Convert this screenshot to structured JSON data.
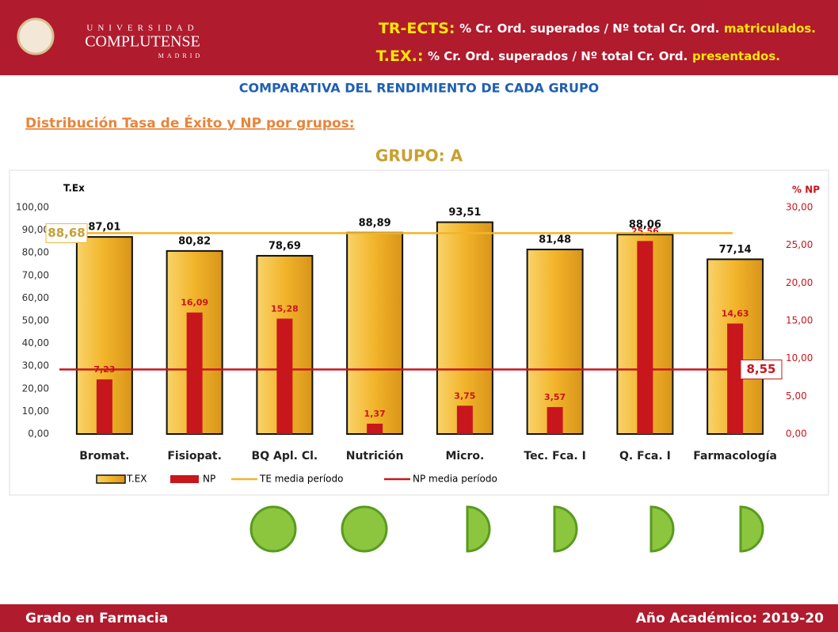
{
  "header": {
    "logo": [
      "UNIVERSIDAD",
      "COMPLUTENSE",
      "MADRID"
    ],
    "lines": [
      [
        "TR-ECTS:",
        "% Cr. Ord. superados / Nº total Cr. Ord.",
        "matriculados."
      ],
      [
        "T.EX.:",
        "% Cr. Ord. superados / Nº total Cr. Ord.",
        "presentados."
      ]
    ]
  },
  "heading": "COMPARATIVA DEL RENDIMIENTO DE CADA GRUPO",
  "subheading": "Distribución Tasa de Éxito y NP por grupos:",
  "footer": {
    "left": "Grado en Farmacia",
    "right": "Año Académico: 2019-20"
  },
  "chart_data": {
    "type": "bar",
    "title": "GRUPO: A",
    "y_label": "T.Ex",
    "y2_label": "% NP",
    "categories": [
      "Bromat.",
      "Fisiopat.",
      "BQ Apl. Cl.",
      "Nutrición",
      "Micro.",
      "Tec. Fca. I",
      "Q. Fca. I",
      "Farmacología"
    ],
    "series": [
      {
        "name": "T.EX",
        "color": "#f2b42a",
        "values": [
          87.01,
          80.82,
          78.69,
          88.89,
          93.51,
          81.48,
          88.06,
          77.14
        ],
        "value_labels": [
          "87,01",
          "80,82",
          "78,69",
          "88,89",
          "93,51",
          "81,48",
          "88,06",
          "77,14"
        ]
      },
      {
        "name": "NP",
        "color": "#c8161d",
        "axis": "y2",
        "values": [
          7.23,
          16.09,
          15.28,
          1.37,
          3.75,
          3.57,
          25.56,
          14.63
        ],
        "value_labels": [
          "7,23",
          "16,09",
          "15,28",
          "1,37",
          "3,75",
          "3,57",
          "25,56",
          "14,63"
        ]
      }
    ],
    "reference_lines": [
      {
        "name": "TE media período",
        "color": "#f2b42a",
        "value": 88.68,
        "label": "88,68"
      },
      {
        "name": "NP media período",
        "color": "#c8161d",
        "axis": "y2",
        "value": 8.55,
        "label": "8,55"
      }
    ],
    "ylim": [
      0,
      100
    ],
    "yticks": [
      {
        "value": 0,
        "label": "0,00"
      },
      {
        "value": 10,
        "label": "10,00"
      },
      {
        "value": 20,
        "label": "20,00"
      },
      {
        "value": 30,
        "label": "30,00"
      },
      {
        "value": 40,
        "label": "40,00"
      },
      {
        "value": 50,
        "label": "50,00"
      },
      {
        "value": 60,
        "label": "60,00"
      },
      {
        "value": 70,
        "label": "70,00"
      },
      {
        "value": 80,
        "label": "80,00"
      },
      {
        "value": 90,
        "label": "90,00"
      },
      {
        "value": 100,
        "label": "100,00"
      }
    ],
    "y2lim": [
      0,
      30
    ],
    "y2ticks": [
      {
        "value": 0,
        "label": "0,00"
      },
      {
        "value": 5,
        "label": "5,00"
      },
      {
        "value": 10,
        "label": "10,00"
      },
      {
        "value": 15,
        "label": "15,00"
      },
      {
        "value": 20,
        "label": "20,00"
      },
      {
        "value": 25,
        "label": "25,00"
      },
      {
        "value": 30,
        "label": "30,00"
      }
    ]
  }
}
